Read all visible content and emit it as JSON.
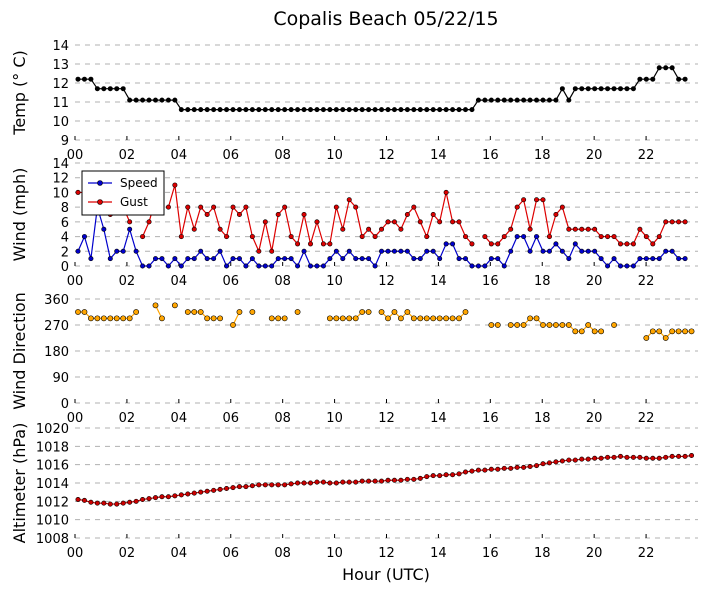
{
  "title": "Copalis Beach 05/22/15",
  "xlabel": "Hour (UTC)",
  "x_tick_labels": [
    "00",
    "02",
    "04",
    "06",
    "08",
    "10",
    "12",
    "14",
    "16",
    "18",
    "20",
    "22"
  ],
  "colors": {
    "temp": "#000000",
    "speed": "#0000cc",
    "gust": "#dd0000",
    "dir": "#ffa500",
    "alt": "#cc0000"
  },
  "chart_data": [
    {
      "type": "line",
      "id": "temp",
      "ylabel": "Temp (° C)",
      "ylim": [
        9,
        14
      ],
      "yticks": [
        9,
        10,
        11,
        12,
        13,
        14
      ],
      "series": [
        {
          "key": "temp",
          "values": [
            12.2,
            12.2,
            12.2,
            11.7,
            11.7,
            11.7,
            11.7,
            11.7,
            11.1,
            11.1,
            11.1,
            11.1,
            11.1,
            11.1,
            11.1,
            11.1,
            10.6,
            10.6,
            10.6,
            10.6,
            10.6,
            10.6,
            10.6,
            10.6,
            10.6,
            10.6,
            10.6,
            10.6,
            10.6,
            10.6,
            10.6,
            10.6,
            10.6,
            10.6,
            10.6,
            10.6,
            10.6,
            10.6,
            10.6,
            10.6,
            10.6,
            10.6,
            10.6,
            10.6,
            10.6,
            10.6,
            10.6,
            10.6,
            10.6,
            10.6,
            10.6,
            10.6,
            10.6,
            10.6,
            10.6,
            10.6,
            10.6,
            10.6,
            10.6,
            10.6,
            10.6,
            10.6,
            11.1,
            11.1,
            11.1,
            11.1,
            11.1,
            11.1,
            11.1,
            11.1,
            11.1,
            11.1,
            11.1,
            11.1,
            11.1,
            11.7,
            11.1,
            11.7,
            11.7,
            11.7,
            11.7,
            11.7,
            11.7,
            11.7,
            11.7,
            11.7,
            11.7,
            12.2,
            12.2,
            12.2,
            12.8,
            12.8,
            12.8,
            12.2,
            12.2
          ]
        }
      ]
    },
    {
      "type": "line",
      "id": "wind",
      "ylabel": "Wind (mph)",
      "ylim": [
        0,
        14
      ],
      "yticks": [
        0,
        2,
        4,
        6,
        8,
        10,
        12,
        14
      ],
      "legend": {
        "position": "top-left",
        "entries": [
          {
            "key": "speed",
            "label": "Speed"
          },
          {
            "key": "gust",
            "label": "Gust"
          }
        ]
      },
      "series": [
        {
          "key": "speed",
          "name": "Speed",
          "values": [
            2,
            4,
            1,
            8,
            5,
            1,
            2,
            2,
            5,
            2,
            0,
            0,
            1,
            1,
            0,
            1,
            0,
            1,
            1,
            2,
            1,
            1,
            2,
            0,
            1,
            1,
            0,
            1,
            0,
            0,
            0,
            1,
            1,
            1,
            0,
            2,
            0,
            0,
            0,
            1,
            2,
            1,
            2,
            1,
            1,
            1,
            0,
            2,
            2,
            2,
            2,
            2,
            1,
            1,
            2,
            2,
            1,
            3,
            3,
            1,
            1,
            0,
            0,
            0,
            1,
            1,
            0,
            2,
            4,
            4,
            2,
            4,
            2,
            2,
            3,
            2,
            1,
            3,
            2,
            2,
            2,
            1,
            0,
            1,
            0,
            0,
            0,
            1,
            1,
            1,
            1,
            2,
            2,
            1,
            1
          ]
        },
        {
          "key": "gust",
          "name": "Gust",
          "values": [
            10,
            10,
            9,
            8,
            null,
            7,
            null,
            8,
            6,
            null,
            4,
            6,
            9,
            null,
            8,
            11,
            4,
            8,
            5,
            8,
            7,
            8,
            5,
            4,
            8,
            7,
            8,
            4,
            2,
            6,
            2,
            7,
            8,
            4,
            3,
            7,
            3,
            6,
            3,
            3,
            8,
            5,
            9,
            8,
            4,
            5,
            4,
            5,
            6,
            6,
            5,
            7,
            8,
            6,
            4,
            7,
            6,
            10,
            6,
            6,
            4,
            3,
            null,
            4,
            3,
            3,
            4,
            5,
            8,
            9,
            5,
            9,
            9,
            4,
            7,
            8,
            5,
            5,
            5,
            5,
            5,
            4,
            4,
            4,
            3,
            3,
            3,
            5,
            4,
            3,
            4,
            6,
            6,
            6,
            6
          ]
        }
      ]
    },
    {
      "type": "scatter",
      "id": "dir",
      "ylabel": "Wind Direction",
      "ylim": [
        0,
        360
      ],
      "yticks": [
        0,
        90,
        180,
        270,
        360
      ],
      "series": [
        {
          "key": "dir",
          "values": [
            315,
            315,
            293,
            293,
            293,
            293,
            293,
            293,
            293,
            315,
            null,
            null,
            338,
            293,
            null,
            338,
            null,
            315,
            315,
            315,
            293,
            293,
            293,
            null,
            270,
            315,
            null,
            315,
            null,
            null,
            293,
            293,
            293,
            null,
            315,
            null,
            null,
            null,
            null,
            293,
            293,
            293,
            293,
            293,
            315,
            315,
            null,
            315,
            293,
            315,
            293,
            315,
            293,
            293,
            293,
            293,
            293,
            293,
            293,
            293,
            315,
            null,
            null,
            null,
            270,
            270,
            null,
            270,
            270,
            270,
            293,
            293,
            270,
            270,
            270,
            270,
            270,
            248,
            248,
            270,
            248,
            248,
            null,
            270,
            null,
            null,
            null,
            null,
            225,
            248,
            248,
            225,
            248,
            248,
            248,
            248
          ]
        }
      ]
    },
    {
      "type": "line",
      "id": "alt",
      "ylabel": "Altimeter (hPa)",
      "ylim": [
        1008,
        1020
      ],
      "yticks": [
        1008,
        1010,
        1012,
        1014,
        1016,
        1018,
        1020
      ],
      "series": [
        {
          "key": "alt",
          "values": [
            1012.2,
            1012.1,
            1011.9,
            1011.8,
            1011.8,
            1011.7,
            1011.7,
            1011.8,
            1011.9,
            1012.0,
            1012.2,
            1012.3,
            1012.4,
            1012.5,
            1012.5,
            1012.6,
            1012.7,
            1012.8,
            1012.9,
            1013.0,
            1013.1,
            1013.2,
            1013.3,
            1013.4,
            1013.5,
            1013.6,
            1013.6,
            1013.7,
            1013.8,
            1013.8,
            1013.8,
            1013.8,
            1013.8,
            1013.9,
            1014.0,
            1014.0,
            1014.0,
            1014.1,
            1014.1,
            1014.0,
            1014.0,
            1014.1,
            1014.1,
            1014.1,
            1014.2,
            1014.2,
            1014.2,
            1014.2,
            1014.3,
            1014.3,
            1014.3,
            1014.4,
            1014.4,
            1014.5,
            1014.7,
            1014.8,
            1014.8,
            1014.9,
            1014.9,
            1015.0,
            1015.2,
            1015.3,
            1015.4,
            1015.4,
            1015.5,
            1015.5,
            1015.6,
            1015.6,
            1015.7,
            1015.7,
            1015.8,
            1015.9,
            1016.1,
            1016.2,
            1016.3,
            1016.4,
            1016.5,
            1016.5,
            1016.6,
            1016.6,
            1016.7,
            1016.7,
            1016.8,
            1016.8,
            1016.9,
            1016.8,
            1016.8,
            1016.8,
            1016.7,
            1016.7,
            1016.7,
            1016.8,
            1016.9,
            1016.9,
            1016.9,
            1017.0
          ]
        }
      ]
    }
  ]
}
